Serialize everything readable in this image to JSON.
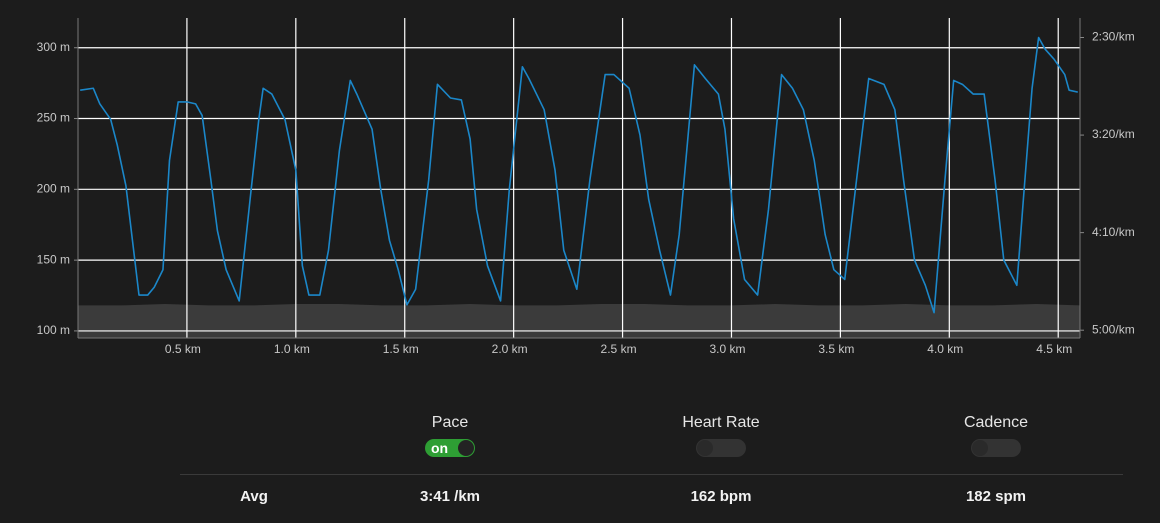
{
  "chart_data": {
    "type": "line",
    "xlim": [
      0,
      4.6
    ],
    "xticks": [
      {
        "value": 0.5,
        "label": "0.5 km"
      },
      {
        "value": 1.0,
        "label": "1.0 km"
      },
      {
        "value": 1.5,
        "label": "1.5 km"
      },
      {
        "value": 2.0,
        "label": "2.0 km"
      },
      {
        "value": 2.5,
        "label": "2.5 km"
      },
      {
        "value": 3.0,
        "label": "3.0 km"
      },
      {
        "value": 3.5,
        "label": "3.5 km"
      },
      {
        "value": 4.0,
        "label": "4.0 km"
      },
      {
        "value": 4.5,
        "label": "4.5 km"
      }
    ],
    "ylim": [
      95,
      321
    ],
    "yticks": [
      {
        "value": 100,
        "label": "100 m"
      },
      {
        "value": 150,
        "label": "150 m"
      },
      {
        "value": 200,
        "label": "200 m"
      },
      {
        "value": 250,
        "label": "250 m"
      },
      {
        "value": 300,
        "label": "300 m"
      }
    ],
    "y2lim": [
      304,
      140
    ],
    "y2ticks": [
      {
        "value": 150,
        "label": "2:30/km"
      },
      {
        "value": 200,
        "label": "3:20/km"
      },
      {
        "value": 250,
        "label": "4:10/km"
      },
      {
        "value": 300,
        "label": "5:00/km"
      }
    ],
    "grid": true,
    "series": [
      {
        "type": "area",
        "color": "#3b3b3b",
        "x": [
          0,
          0.2,
          0.4,
          0.6,
          0.8,
          1.0,
          1.2,
          1.4,
          1.6,
          1.8,
          2.0,
          2.2,
          2.4,
          2.6,
          2.8,
          3.0,
          3.2,
          3.4,
          3.6,
          3.8,
          4.0,
          4.2,
          4.4,
          4.6
        ],
        "values": [
          118,
          118,
          119,
          118,
          118,
          119,
          119,
          118,
          118,
          119,
          118,
          118,
          119,
          119,
          118,
          118,
          119,
          118,
          118,
          119,
          118,
          118,
          119,
          118
        ]
      },
      {
        "type": "line",
        "color": "#1b87c9",
        "axis": "y2",
        "x": [
          0.01,
          0.07,
          0.1,
          0.15,
          0.18,
          0.22,
          0.25,
          0.28,
          0.32,
          0.35,
          0.39,
          0.42,
          0.46,
          0.5,
          0.54,
          0.57,
          0.61,
          0.64,
          0.68,
          0.74,
          0.79,
          0.83,
          0.85,
          0.89,
          0.95,
          1.0,
          1.03,
          1.06,
          1.11,
          1.15,
          1.2,
          1.25,
          1.28,
          1.35,
          1.39,
          1.43,
          1.47,
          1.51,
          1.55,
          1.61,
          1.65,
          1.71,
          1.76,
          1.8,
          1.83,
          1.88,
          1.94,
          1.98,
          2.04,
          2.07,
          2.14,
          2.19,
          2.23,
          2.29,
          2.35,
          2.42,
          2.46,
          2.53,
          2.58,
          2.62,
          2.67,
          2.72,
          2.76,
          2.83,
          2.88,
          2.94,
          2.97,
          3.01,
          3.06,
          3.12,
          3.17,
          3.23,
          3.28,
          3.33,
          3.38,
          3.43,
          3.47,
          3.52,
          3.59,
          3.63,
          3.7,
          3.75,
          3.79,
          3.84,
          3.89,
          3.93,
          3.98,
          4.02,
          4.06,
          4.11,
          4.16,
          4.21,
          4.25,
          4.31,
          4.34,
          4.38,
          4.41,
          4.44,
          4.48,
          4.53,
          4.55,
          4.59
        ],
        "values": [
          177,
          176,
          184,
          192,
          205,
          226,
          254,
          282,
          282,
          278,
          269,
          213,
          183,
          183,
          184,
          190,
          223,
          249,
          269,
          285,
          233,
          192,
          176,
          179,
          192,
          218,
          267,
          282,
          282,
          259,
          208,
          172,
          179,
          197,
          228,
          254,
          269,
          287,
          279,
          223,
          174,
          181,
          182,
          202,
          238,
          267,
          285,
          228,
          165,
          171,
          187,
          218,
          259,
          279,
          223,
          169,
          169,
          176,
          200,
          233,
          259,
          282,
          251,
          164,
          171,
          179,
          197,
          243,
          274,
          282,
          238,
          169,
          176,
          187,
          213,
          251,
          269,
          274,
          208,
          171,
          174,
          187,
          223,
          264,
          277,
          291,
          223,
          172,
          174,
          179,
          179,
          223,
          264,
          277,
          233,
          176,
          150,
          156,
          161,
          169,
          177,
          178
        ]
      }
    ]
  },
  "controls": [
    {
      "label": "Pace",
      "on": true,
      "toggle_text": "on"
    },
    {
      "label": "Heart Rate",
      "on": false
    },
    {
      "label": "Cadence",
      "on": false
    }
  ],
  "summary": {
    "label": "Avg",
    "values": [
      "3:41 /km",
      "162 bpm",
      "182 spm"
    ]
  }
}
